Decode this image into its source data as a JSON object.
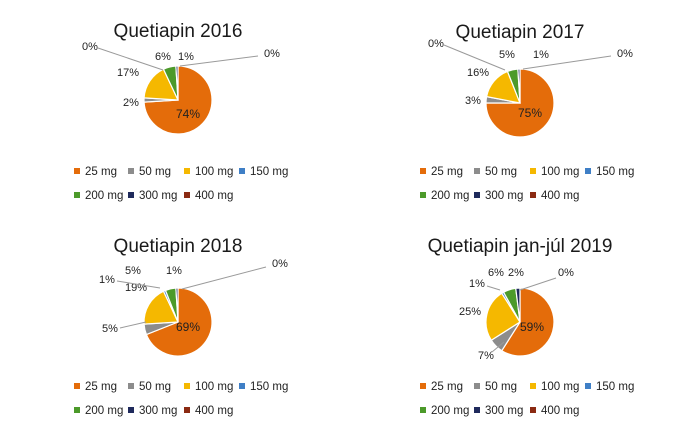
{
  "chart_data": [
    {
      "type": "pie",
      "title": "Quetiapin 2016",
      "categories": [
        "25 mg",
        "50 mg",
        "100 mg",
        "150 mg",
        "200 mg",
        "300 mg",
        "400 mg"
      ],
      "values": [
        74,
        2,
        17,
        0,
        6,
        1,
        0
      ],
      "data_labels": [
        "74%",
        "2%",
        "17%",
        "0%",
        "6%",
        "1%",
        "0%"
      ],
      "legend_position": "bottom"
    },
    {
      "type": "pie",
      "title": "Quetiapin 2017",
      "categories": [
        "25 mg",
        "50 mg",
        "100 mg",
        "150 mg",
        "200 mg",
        "300 mg",
        "400 mg"
      ],
      "values": [
        75,
        3,
        16,
        0,
        5,
        1,
        0
      ],
      "data_labels": [
        "75%",
        "3%",
        "16%",
        "0%",
        "5%",
        "1%",
        "0%"
      ],
      "legend_position": "bottom"
    },
    {
      "type": "pie",
      "title": "Quetiapin 2018",
      "categories": [
        "25 mg",
        "50 mg",
        "100 mg",
        "150 mg",
        "200 mg",
        "300 mg",
        "400 mg"
      ],
      "values": [
        69,
        5,
        19,
        1,
        5,
        1,
        0
      ],
      "data_labels": [
        "69%",
        "5%",
        "19%",
        "1%",
        "5%",
        "1%",
        "0%"
      ],
      "legend_position": "bottom"
    },
    {
      "type": "pie",
      "title": "Quetiapin jan-júl 2019",
      "categories": [
        "25 mg",
        "50 mg",
        "100 mg",
        "150 mg",
        "200 mg",
        "300 mg",
        "400 mg"
      ],
      "values": [
        59,
        7,
        25,
        1,
        6,
        2,
        0
      ],
      "data_labels": [
        "59%",
        "7%",
        "25%",
        "1%",
        "6%",
        "2%",
        "0%"
      ],
      "legend_position": "bottom"
    }
  ],
  "series_colors": [
    "#E46C0A",
    "#8C8C8C",
    "#F5B800",
    "#3F7FC6",
    "#4C9A2A",
    "#1F2A5C",
    "#8B2A12"
  ]
}
